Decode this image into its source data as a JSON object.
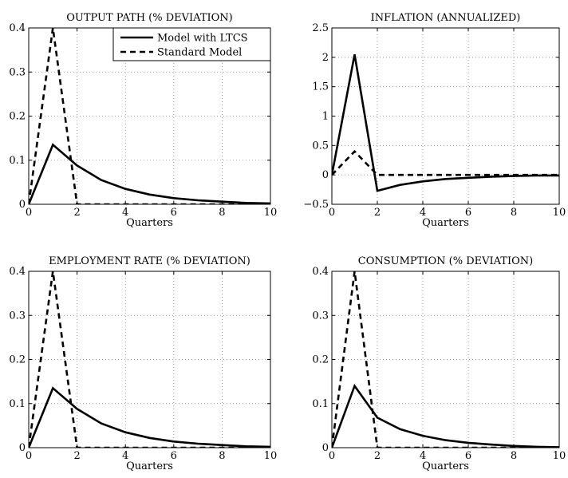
{
  "chart_data": [
    {
      "type": "line",
      "title": "OUTPUT PATH (% DEVIATION)",
      "xlabel": "Quarters",
      "ylabel": "",
      "xlim": [
        0,
        10
      ],
      "ylim": [
        0,
        0.4
      ],
      "xticks": [
        0,
        2,
        4,
        6,
        8,
        10
      ],
      "yticks": [
        0,
        0.1,
        0.2,
        0.3,
        0.4
      ],
      "xtick_labels": [
        "0",
        "2",
        "4",
        "6",
        "8",
        "10"
      ],
      "ytick_labels": [
        "0",
        "0.1",
        "0.2",
        "0.3",
        "0.4"
      ],
      "grid": true,
      "legend": "top-right",
      "x": [
        0,
        1,
        2,
        3,
        4,
        5,
        6,
        7,
        8,
        9,
        10
      ],
      "series": [
        {
          "name": "Model with LTCS",
          "style": "solid",
          "values": [
            0,
            0.135,
            0.088,
            0.055,
            0.035,
            0.022,
            0.014,
            0.009,
            0.006,
            0.003,
            0.002
          ]
        },
        {
          "name": "Standard Model",
          "style": "dashed",
          "values": [
            0,
            0.4,
            0,
            0,
            0,
            0,
            0,
            0,
            0,
            0,
            0
          ]
        }
      ]
    },
    {
      "type": "line",
      "title": "INFLATION (ANNUALIZED)",
      "xlabel": "Quarters",
      "ylabel": "",
      "xlim": [
        0,
        10
      ],
      "ylim": [
        -0.5,
        2.5
      ],
      "xticks": [
        0,
        2,
        4,
        6,
        8,
        10
      ],
      "yticks": [
        -0.5,
        0,
        0.5,
        1,
        1.5,
        2,
        2.5
      ],
      "xtick_labels": [
        "0",
        "2",
        "4",
        "6",
        "8",
        "10"
      ],
      "ytick_labels": [
        "−0.5",
        "0",
        "0.5",
        "1",
        "1.5",
        "2",
        "2.5"
      ],
      "grid": true,
      "legend": "none",
      "x": [
        0,
        1,
        2,
        3,
        4,
        5,
        6,
        7,
        8,
        9,
        10
      ],
      "series": [
        {
          "style": "solid",
          "values": [
            0,
            2.05,
            -0.27,
            -0.17,
            -0.11,
            -0.07,
            -0.05,
            -0.03,
            -0.02,
            -0.01,
            -0.01
          ]
        },
        {
          "style": "dashed",
          "values": [
            0,
            0.4,
            0,
            0,
            0,
            0,
            0,
            0,
            0,
            0,
            0
          ]
        }
      ]
    },
    {
      "type": "line",
      "title": "EMPLOYMENT RATE (% DEVIATION)",
      "xlabel": "Quarters",
      "ylabel": "",
      "xlim": [
        0,
        10
      ],
      "ylim": [
        0,
        0.4
      ],
      "xticks": [
        0,
        2,
        4,
        6,
        8,
        10
      ],
      "yticks": [
        0,
        0.1,
        0.2,
        0.3,
        0.4
      ],
      "xtick_labels": [
        "0",
        "2",
        "4",
        "6",
        "8",
        "10"
      ],
      "ytick_labels": [
        "0",
        "0.1",
        "0.2",
        "0.3",
        "0.4"
      ],
      "grid": true,
      "legend": "none",
      "x": [
        0,
        1,
        2,
        3,
        4,
        5,
        6,
        7,
        8,
        9,
        10
      ],
      "series": [
        {
          "style": "solid",
          "values": [
            0,
            0.135,
            0.088,
            0.055,
            0.035,
            0.022,
            0.014,
            0.009,
            0.006,
            0.003,
            0.002
          ]
        },
        {
          "style": "dashed",
          "values": [
            0,
            0.4,
            0,
            0,
            0,
            0,
            0,
            0,
            0,
            0,
            0
          ]
        }
      ]
    },
    {
      "type": "line",
      "title": "CONSUMPTION (% DEVIATION)",
      "xlabel": "Quarters",
      "ylabel": "",
      "xlim": [
        0,
        10
      ],
      "ylim": [
        0,
        0.4
      ],
      "xticks": [
        0,
        2,
        4,
        6,
        8,
        10
      ],
      "yticks": [
        0,
        0.1,
        0.2,
        0.3,
        0.4
      ],
      "xtick_labels": [
        "0",
        "2",
        "4",
        "6",
        "8",
        "10"
      ],
      "ytick_labels": [
        "0",
        "0.1",
        "0.2",
        "0.3",
        "0.4"
      ],
      "grid": true,
      "legend": "none",
      "x": [
        0,
        1,
        2,
        3,
        4,
        5,
        6,
        7,
        8,
        9,
        10
      ],
      "series": [
        {
          "style": "solid",
          "values": [
            0,
            0.14,
            0.068,
            0.042,
            0.027,
            0.017,
            0.011,
            0.007,
            0.004,
            0.002,
            0.001
          ]
        },
        {
          "style": "dashed",
          "values": [
            0,
            0.4,
            0,
            0,
            0,
            0,
            0,
            0,
            0,
            0,
            0
          ]
        }
      ]
    }
  ]
}
